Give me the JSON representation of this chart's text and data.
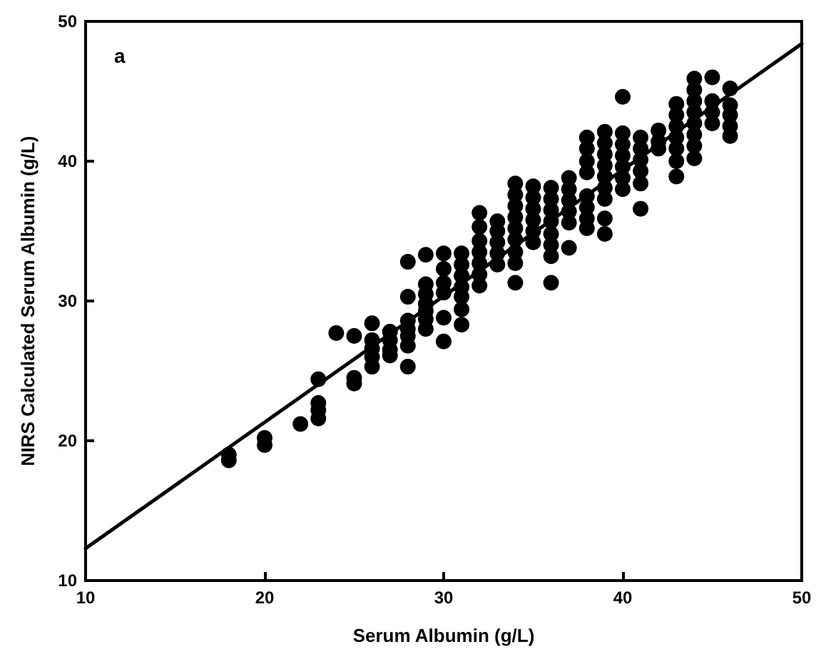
{
  "chart_data": {
    "type": "scatter",
    "xlabel": "Serum Albumin (g/L)",
    "ylabel": "NIRS Calculated Serum Albumin (g/L)",
    "annotations": [
      "a"
    ],
    "xlim": [
      10,
      50
    ],
    "ylim": [
      10,
      50
    ],
    "xticks": [
      10,
      20,
      30,
      40,
      50
    ],
    "yticks": [
      10,
      20,
      30,
      40,
      50
    ],
    "grid": false,
    "marker": "circle",
    "series": [
      {
        "color": "#000000",
        "x": [
          18,
          18,
          20,
          20,
          22,
          23,
          23,
          23,
          23,
          24,
          25,
          25,
          25,
          26,
          26,
          26,
          26,
          26,
          27,
          27,
          27,
          27,
          28,
          28,
          28,
          28,
          28,
          28,
          28,
          29,
          29,
          29,
          29,
          29,
          29,
          29,
          30,
          30,
          30,
          30,
          30,
          30,
          31,
          31,
          31,
          31,
          31,
          31,
          31,
          32,
          32,
          32,
          32,
          32,
          32,
          32,
          33,
          33,
          33,
          33,
          33,
          34,
          34,
          34,
          34,
          34,
          34,
          34,
          34,
          34,
          35,
          35,
          35,
          35,
          35,
          35,
          36,
          36,
          36,
          36,
          36,
          36,
          36,
          36,
          37,
          37,
          37,
          37,
          37,
          37,
          38,
          38,
          38,
          38,
          38,
          38,
          38,
          38,
          39,
          39,
          39,
          39,
          39,
          39,
          39,
          39,
          39,
          40,
          40,
          40,
          40,
          40,
          40,
          40,
          41,
          41,
          41,
          41,
          41,
          41,
          42,
          42,
          42,
          43,
          43,
          43,
          43,
          43,
          43,
          43,
          44,
          44,
          44,
          44,
          44,
          44,
          44,
          44,
          45,
          45,
          45,
          45,
          46,
          46,
          46,
          46,
          46
        ],
        "values": [
          19,
          18.6,
          20.2,
          19.7,
          21.2,
          24.4,
          22.7,
          22.2,
          21.6,
          27.7,
          27.5,
          24.5,
          24.1,
          28.4,
          27.2,
          26.6,
          26,
          25.3,
          27.8,
          27.2,
          26.5,
          26.1,
          32.8,
          30.3,
          28.6,
          28,
          27.5,
          26.8,
          25.3,
          33.3,
          31.2,
          30.5,
          29.8,
          29.3,
          28.7,
          28,
          33.4,
          32.3,
          31.3,
          30.6,
          28.8,
          27.1,
          33.4,
          32.6,
          31.8,
          31,
          30.3,
          29.4,
          28.3,
          36.3,
          35.3,
          34.3,
          33.5,
          32.7,
          31.9,
          31.1,
          35.7,
          35,
          34.2,
          33.4,
          32.6,
          38.4,
          37.6,
          36.8,
          36,
          35.2,
          34.4,
          33.5,
          32.7,
          31.3,
          38.2,
          37.4,
          36.6,
          35.8,
          35,
          34.2,
          38.1,
          37.3,
          36.5,
          35.7,
          34.8,
          34,
          33.2,
          31.3,
          38.8,
          38,
          37.2,
          36.4,
          35.6,
          33.8,
          41.7,
          40.9,
          40,
          39.2,
          37.5,
          36.7,
          35.9,
          35.2,
          42.1,
          41.3,
          40.5,
          39.7,
          38.9,
          38.1,
          37.3,
          35.9,
          34.8,
          44.6,
          42,
          41.2,
          40.4,
          39.6,
          38.8,
          38,
          41.7,
          40.9,
          40.1,
          39.3,
          38.4,
          36.6,
          42.2,
          41.4,
          40.9,
          44.1,
          43.3,
          42.5,
          41.7,
          40.9,
          40,
          38.9,
          45.9,
          45.1,
          44.3,
          43.5,
          42.7,
          41.9,
          41.1,
          40.2,
          46,
          44.3,
          43.5,
          42.7,
          45.2,
          44,
          43.3,
          42.5,
          41.8
        ]
      },
      {
        "type": "line",
        "color": "#000000",
        "x": [
          10,
          50
        ],
        "values": [
          12.3,
          48.4
        ],
        "marker": "none",
        "line_style": "solid"
      }
    ]
  }
}
